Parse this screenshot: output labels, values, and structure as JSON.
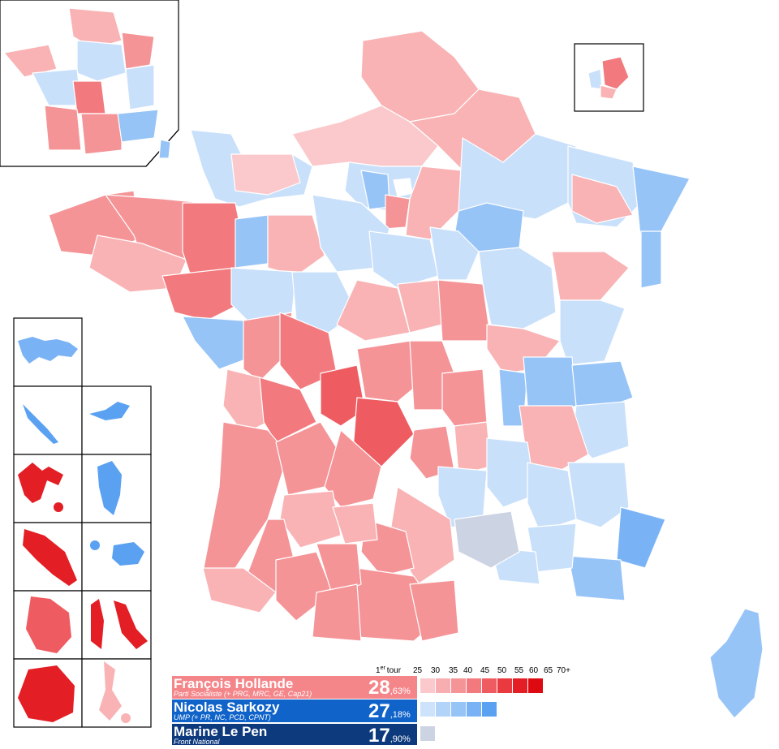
{
  "legend": {
    "round_label": "1",
    "round_sup": "er",
    "round_word": "tour",
    "thresholds": [
      "25",
      "30",
      "35",
      "40",
      "45",
      "50",
      "55",
      "60",
      "65",
      "70+"
    ],
    "candidates": [
      {
        "name": "François Hollande",
        "party": "Parti Socialiste (+ PRG, MRC, GE, Cap21)",
        "pct_int": "28",
        "pct_dec": ",63%",
        "bg": "#f4868a",
        "scale": [
          "#fbc9cb",
          "#f8aeb0",
          "#f59497",
          "#f27a7e",
          "#ee5c61",
          "#e93a40",
          "#e31e25",
          "#dd0a11"
        ]
      },
      {
        "name": "Nicolas Sarkozy",
        "party": "UMP (+ PR, NC, PCD, CPNT)",
        "pct_int": "27",
        "pct_dec": ",18%",
        "bg": "#0f63c9",
        "scale": [
          "#cde3fb",
          "#b2d4f9",
          "#97c4f7",
          "#7ab3f5",
          "#5aa1f2"
        ]
      },
      {
        "name": "Marine Le Pen",
        "party": "Front National",
        "pct_int": "17",
        "pct_dec": ",90%",
        "bg": "#0d3a7d",
        "scale": [
          "#ccd3e2"
        ]
      }
    ]
  },
  "colors": {
    "ps_light": "#fbc9cb",
    "ps_lighter": "#f9b3b5",
    "ps_mid": "#f59497",
    "ps_strong": "#f27a7e",
    "ps_stronger": "#ee5c61",
    "ps_deep": "#e31e25",
    "ump_light": "#c9e0fb",
    "ump_lighter": "#b2d4f9",
    "ump_mid": "#97c4f7",
    "ump_strong": "#7ab3f5",
    "fn_light": "#ccd3e2"
  }
}
